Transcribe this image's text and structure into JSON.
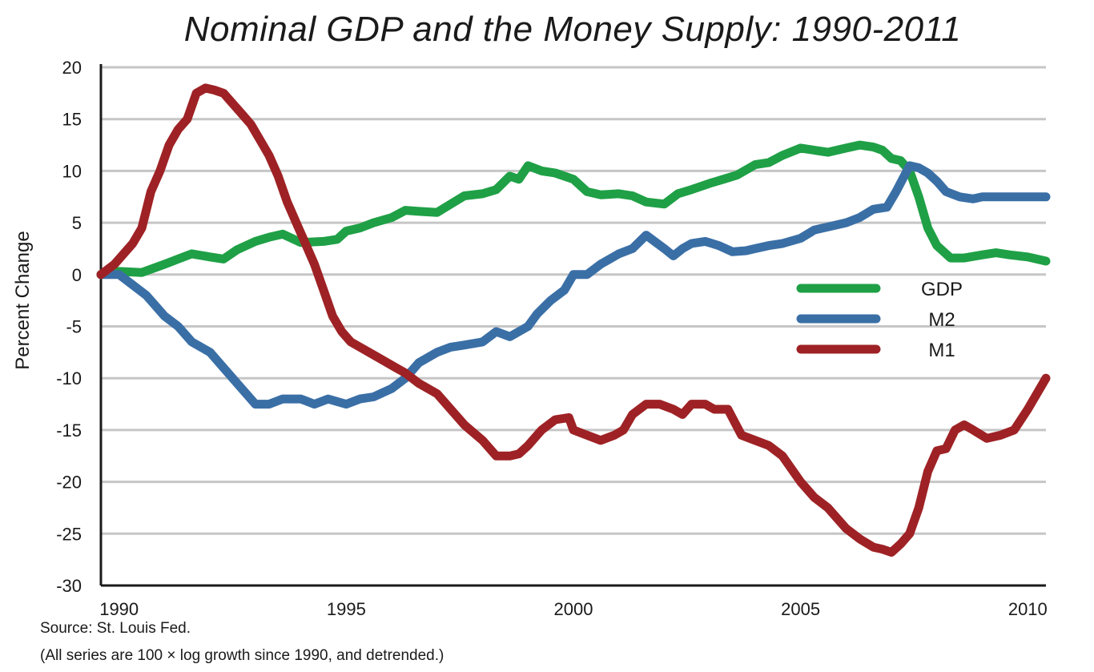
{
  "chart_data": {
    "type": "line",
    "title": "Nominal GDP and the Money Supply: 1990-2011",
    "ylabel": "Percent Change",
    "xlabel": "",
    "xlim": [
      1989.6,
      2010.4
    ],
    "ylim": [
      -30,
      20
    ],
    "yticks": [
      20,
      15,
      10,
      5,
      0,
      -5,
      -10,
      -15,
      -20,
      -25,
      -30
    ],
    "xticks": [
      1990,
      1995,
      2000,
      2005,
      2010
    ],
    "grid": true,
    "legend_position": "center-right",
    "series": [
      {
        "name": "GDP",
        "color": "#1fa046",
        "x": [
          1989.6,
          1990.0,
          1990.5,
          1991.0,
          1991.3,
          1991.6,
          1992.0,
          1992.3,
          1992.6,
          1993.0,
          1993.3,
          1993.6,
          1994.0,
          1994.5,
          1994.8,
          1995.0,
          1995.3,
          1995.6,
          1996.0,
          1996.3,
          1996.6,
          1997.0,
          1997.3,
          1997.6,
          1998.0,
          1998.3,
          1998.6,
          1998.8,
          1999.0,
          1999.3,
          1999.6,
          2000.0,
          2000.3,
          2000.6,
          2001.0,
          2001.3,
          2001.6,
          2002.0,
          2002.3,
          2002.6,
          2003.0,
          2003.3,
          2003.6,
          2004.0,
          2004.3,
          2004.6,
          2005.0,
          2005.3,
          2005.6,
          2006.0,
          2006.3,
          2006.6,
          2006.8,
          2007.0,
          2007.2,
          2007.4,
          2007.6,
          2007.8,
          2008.0,
          2008.3,
          2008.6,
          2009.0,
          2009.3,
          2009.6,
          2010.0,
          2010.4
        ],
        "values": [
          0.0,
          0.3,
          0.2,
          1.0,
          1.5,
          2.0,
          1.7,
          1.5,
          2.4,
          3.2,
          3.6,
          3.9,
          3.1,
          3.2,
          3.4,
          4.2,
          4.5,
          5.0,
          5.5,
          6.2,
          6.1,
          6.0,
          6.8,
          7.6,
          7.8,
          8.2,
          9.5,
          9.2,
          10.5,
          10.0,
          9.8,
          9.2,
          8.0,
          7.7,
          7.8,
          7.6,
          7.0,
          6.8,
          7.8,
          8.2,
          8.8,
          9.2,
          9.6,
          10.6,
          10.8,
          11.5,
          12.2,
          12.0,
          11.8,
          12.2,
          12.5,
          12.3,
          12.0,
          11.2,
          11.0,
          10.0,
          7.5,
          4.5,
          2.8,
          1.6,
          1.6,
          1.9,
          2.1,
          1.9,
          1.7,
          1.3
        ]
      },
      {
        "name": "M2",
        "color": "#3a6fa6",
        "x": [
          1989.6,
          1990.0,
          1990.3,
          1990.6,
          1991.0,
          1991.3,
          1991.6,
          1992.0,
          1992.3,
          1992.6,
          1993.0,
          1993.3,
          1993.6,
          1994.0,
          1994.3,
          1994.6,
          1995.0,
          1995.3,
          1995.6,
          1996.0,
          1996.3,
          1996.6,
          1997.0,
          1997.3,
          1997.6,
          1998.0,
          1998.3,
          1998.6,
          1999.0,
          1999.2,
          1999.5,
          1999.8,
          2000.0,
          2000.3,
          2000.6,
          2001.0,
          2001.3,
          2001.6,
          2002.0,
          2002.2,
          2002.4,
          2002.6,
          2002.9,
          2003.2,
          2003.5,
          2003.8,
          2004.0,
          2004.3,
          2004.6,
          2005.0,
          2005.3,
          2005.6,
          2006.0,
          2006.3,
          2006.6,
          2006.9,
          2007.1,
          2007.4,
          2007.6,
          2007.8,
          2008.0,
          2008.2,
          2008.5,
          2008.8,
          2009.0,
          2009.3,
          2009.6,
          2010.0,
          2010.4
        ],
        "values": [
          0.0,
          0.0,
          -1.0,
          -2.0,
          -4.0,
          -5.0,
          -6.5,
          -7.5,
          -9.0,
          -10.5,
          -12.5,
          -12.5,
          -12.0,
          -12.0,
          -12.5,
          -12.0,
          -12.5,
          -12.0,
          -11.8,
          -11.0,
          -10.0,
          -8.5,
          -7.5,
          -7.0,
          -6.8,
          -6.5,
          -5.5,
          -6.0,
          -5.0,
          -3.8,
          -2.5,
          -1.5,
          0.0,
          0.0,
          1.0,
          2.0,
          2.5,
          3.8,
          2.5,
          1.8,
          2.5,
          3.0,
          3.2,
          2.8,
          2.2,
          2.3,
          2.5,
          2.8,
          3.0,
          3.5,
          4.3,
          4.6,
          5.0,
          5.5,
          6.3,
          6.5,
          8.0,
          10.5,
          10.3,
          9.8,
          9.0,
          8.0,
          7.5,
          7.3,
          7.5,
          7.5,
          7.5,
          7.5,
          7.5
        ]
      },
      {
        "name": "M1",
        "color": "#9e2225",
        "x": [
          1989.6,
          1989.9,
          1990.1,
          1990.3,
          1990.5,
          1990.7,
          1990.9,
          1991.1,
          1991.3,
          1991.5,
          1991.7,
          1991.9,
          1992.1,
          1992.3,
          1992.5,
          1992.7,
          1992.9,
          1993.1,
          1993.3,
          1993.5,
          1993.7,
          1993.9,
          1994.1,
          1994.3,
          1994.5,
          1994.7,
          1994.9,
          1995.1,
          1995.3,
          1995.5,
          1995.7,
          1995.9,
          1996.1,
          1996.3,
          1996.6,
          1997.0,
          1997.3,
          1997.6,
          1998.0,
          1998.3,
          1998.6,
          1998.8,
          1999.0,
          1999.3,
          1999.6,
          1999.9,
          2000.0,
          2000.3,
          2000.6,
          2000.9,
          2001.1,
          2001.3,
          2001.6,
          2001.9,
          2002.2,
          2002.4,
          2002.6,
          2002.9,
          2003.1,
          2003.4,
          2003.7,
          2004.0,
          2004.3,
          2004.6,
          2005.0,
          2005.3,
          2005.6,
          2006.0,
          2006.3,
          2006.6,
          2006.8,
          2007.0,
          2007.2,
          2007.4,
          2007.6,
          2007.8,
          2008.0,
          2008.2,
          2008.4,
          2008.6,
          2008.8,
          2009.1,
          2009.4,
          2009.7,
          2010.0,
          2010.4
        ],
        "values": [
          0.0,
          1.0,
          2.0,
          3.0,
          4.5,
          8.0,
          10.0,
          12.5,
          14.0,
          15.0,
          17.5,
          18.0,
          17.8,
          17.5,
          16.5,
          15.5,
          14.5,
          13.0,
          11.5,
          9.5,
          7.0,
          5.0,
          3.0,
          1.0,
          -1.5,
          -4.0,
          -5.5,
          -6.5,
          -7.0,
          -7.5,
          -8.0,
          -8.5,
          -9.0,
          -9.5,
          -10.5,
          -11.5,
          -13.0,
          -14.5,
          -16.0,
          -17.5,
          -17.5,
          -17.3,
          -16.5,
          -15.0,
          -14.0,
          -13.8,
          -15.0,
          -15.5,
          -16.0,
          -15.5,
          -15.0,
          -13.5,
          -12.5,
          -12.5,
          -13.0,
          -13.5,
          -12.5,
          -12.5,
          -13.0,
          -13.0,
          -15.5,
          -16.0,
          -16.5,
          -17.5,
          -20.0,
          -21.5,
          -22.5,
          -24.5,
          -25.5,
          -26.3,
          -26.5,
          -26.8,
          -26.0,
          -25.0,
          -22.5,
          -19.0,
          -17.0,
          -16.8,
          -15.0,
          -14.5,
          -15.0,
          -15.8,
          -15.5,
          -15.0,
          -13.0,
          -10.0
        ]
      }
    ]
  },
  "notes": {
    "source": "Source: St. Louis Fed.",
    "method": "(All series are 100 × log growth since 1990, and detrended.)"
  }
}
